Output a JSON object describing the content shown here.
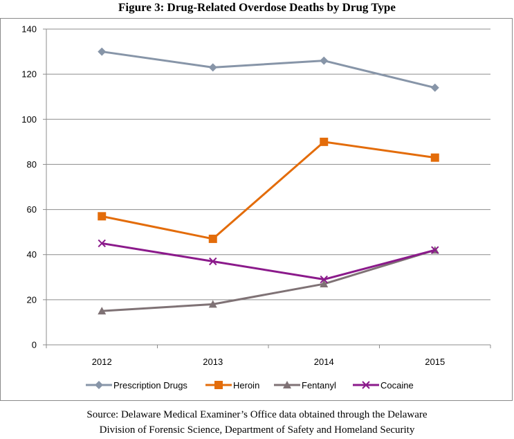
{
  "figure": {
    "title": "Figure 3:  Drug-Related Overdose Deaths by Drug Type",
    "source_line1": "Source:  Delaware Medical Examiner’s Office data obtained through the Delaware",
    "source_line2": "Division of Forensic Science, Department of Safety and Homeland Security"
  },
  "chart_data": {
    "type": "line",
    "title": "Figure 3:  Drug-Related Overdose Deaths by Drug Type",
    "xlabel": "",
    "ylabel": "",
    "categories": [
      "2012",
      "2013",
      "2014",
      "2015"
    ],
    "ylim": [
      0,
      140
    ],
    "yticks": [
      0,
      20,
      40,
      60,
      80,
      100,
      120,
      140
    ],
    "grid": "horizontal",
    "legend_position": "bottom",
    "series": [
      {
        "name": "Prescription Drugs",
        "values": [
          130,
          123,
          126,
          114
        ],
        "color": "#8795a8",
        "marker": "diamond"
      },
      {
        "name": "Heroin",
        "values": [
          57,
          47,
          90,
          83
        ],
        "color": "#e36c0a",
        "marker": "square"
      },
      {
        "name": "Fentanyl",
        "values": [
          15,
          18,
          27,
          42
        ],
        "color": "#7f7275",
        "marker": "triangle"
      },
      {
        "name": "Cocaine",
        "values": [
          45,
          37,
          29,
          42
        ],
        "color": "#8b1a8b",
        "marker": "x"
      }
    ]
  }
}
